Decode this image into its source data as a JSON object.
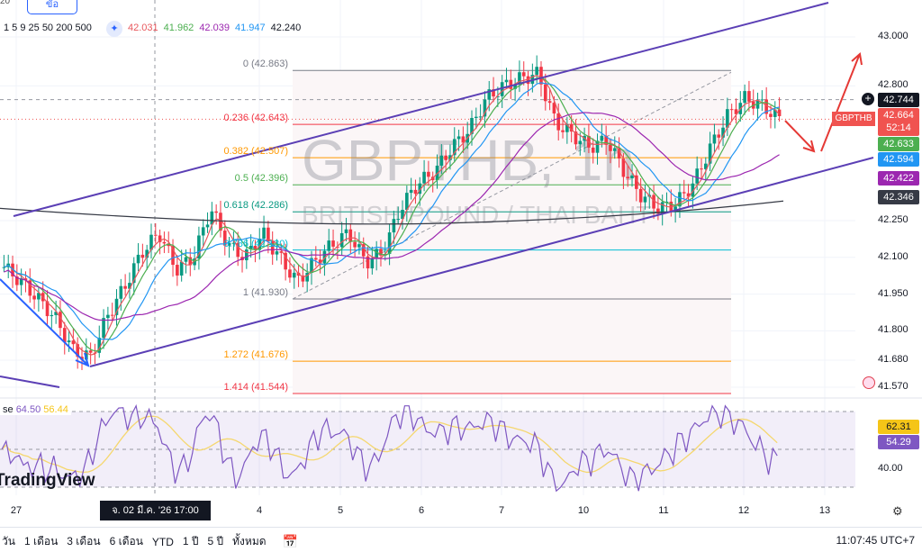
{
  "header": {
    "top_number": "20",
    "sell_button": "ขัอ",
    "ma_lengths": "1 5 9 25 50 200 500",
    "ma_values": [
      {
        "v": "42.031",
        "c": "#e8575c"
      },
      {
        "v": "41.962",
        "c": "#4caf50"
      },
      {
        "v": "42.039",
        "c": "#9c27b0"
      },
      {
        "v": "41.947",
        "c": "#2196f3"
      },
      {
        "v": "42.240",
        "c": "#131722"
      }
    ]
  },
  "watermark": {
    "symbol": "GBPTHB, 1h",
    "name": "BRITISH POUND / THAI BAHT"
  },
  "price_axis": {
    "ticks": [
      "43.000",
      "42.800",
      "42.250",
      "42.100",
      "41.950",
      "41.800",
      "41.680",
      "41.570"
    ],
    "tick_prices": [
      43.0,
      42.8,
      42.25,
      42.1,
      41.95,
      41.8,
      41.68,
      41.57
    ]
  },
  "price_tags": [
    {
      "value": "42.744",
      "color": "#131722",
      "price": 42.744
    },
    {
      "value": "42.664",
      "sub": "52:14",
      "color": "#f05350",
      "price": 42.664,
      "symbol": "GBPTHB"
    },
    {
      "value": "42.633",
      "color": "#4caf50",
      "price": 42.62
    },
    {
      "value": "42.594",
      "color": "#2196f3",
      "price": 42.56
    },
    {
      "value": "42.422",
      "color": "#9c27b0",
      "price": 42.42
    },
    {
      "value": "42.346",
      "color": "#363a45",
      "price": 42.346
    }
  ],
  "fib": [
    {
      "label": "0 (42.863)",
      "price": 42.863,
      "color": "#787b86"
    },
    {
      "label": "0.236 (42.643)",
      "price": 42.643,
      "color": "#f23645"
    },
    {
      "label": "0.382 (42.507)",
      "price": 42.507,
      "color": "#ff9800"
    },
    {
      "label": "0.5 (42.396)",
      "price": 42.396,
      "color": "#4caf50"
    },
    {
      "label": "0.618 (42.286)",
      "price": 42.286,
      "color": "#089981"
    },
    {
      "label": "0.786 (42.130)",
      "price": 42.13,
      "color": "#00bcd4"
    },
    {
      "label": "1 (41.930)",
      "price": 41.93,
      "color": "#787b86"
    },
    {
      "label": "1.272 (41.676)",
      "price": 41.676,
      "color": "#ff9800"
    },
    {
      "label": "1.414 (41.544)",
      "price": 41.544,
      "color": "#f23645"
    }
  ],
  "chart_data": {
    "type": "candlestick",
    "symbol": "GBPTHB",
    "interval": "1h",
    "approx_closes": [
      42.06,
      42.0,
      41.93,
      41.85,
      41.72,
      41.69,
      41.86,
      41.98,
      42.12,
      42.2,
      42.05,
      42.1,
      42.3,
      42.15,
      42.1,
      42.2,
      42.1,
      42.0,
      42.08,
      42.15,
      42.2,
      42.08,
      42.12,
      42.3,
      42.4,
      42.45,
      42.55,
      42.62,
      42.75,
      42.8,
      42.83,
      42.85,
      42.65,
      42.6,
      42.55,
      42.58,
      42.45,
      42.35,
      42.3,
      42.32,
      42.4,
      42.55,
      42.68,
      42.75,
      42.72,
      42.664
    ]
  },
  "rsi": {
    "label": "se",
    "value": "64.50",
    "ma": "56.44",
    "tags": [
      {
        "value": "62.31",
        "color": "#f5c518",
        "text": "#131722"
      },
      {
        "value": "54.29",
        "color": "#7e57c2",
        "text": "#fff"
      }
    ],
    "axis": "40.00"
  },
  "time_axis": [
    {
      "l": "27",
      "x": 18
    },
    {
      "l": "4",
      "x": 288
    },
    {
      "l": "5",
      "x": 378
    },
    {
      "l": "6",
      "x": 468
    },
    {
      "l": "7",
      "x": 557
    },
    {
      "l": "10",
      "x": 648
    },
    {
      "l": "11",
      "x": 737
    },
    {
      "l": "12",
      "x": 826
    },
    {
      "l": "13",
      "x": 916
    }
  ],
  "crosshair_time": "จ. 02 มี.ค. '26   17:00",
  "logo": "TradingView",
  "ranges": [
    "วัน",
    "1 เดือน",
    "3 เดือน",
    "6 เดือน",
    "YTD",
    "1 ปี",
    "5 ปี",
    "ทั้งหมด"
  ],
  "clock": "11:07:45 UTC+7"
}
